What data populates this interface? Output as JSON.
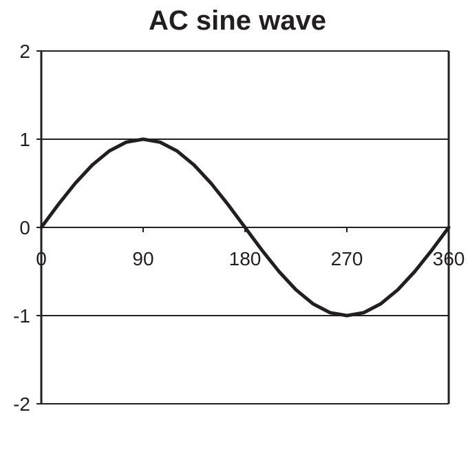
{
  "chart_data": {
    "type": "line",
    "title": "AC sine wave",
    "xlabel": "",
    "ylabel": "",
    "xlim": [
      0,
      360
    ],
    "ylim": [
      -2,
      2
    ],
    "x_ticks": [
      "0",
      "90",
      "180",
      "270",
      "360"
    ],
    "y_ticks": [
      "2",
      "1",
      "0",
      "-1",
      "-2"
    ],
    "grid": "horizontal",
    "legend": "none",
    "series": [
      {
        "x": [
          0,
          15,
          30,
          45,
          60,
          75,
          90,
          105,
          120,
          135,
          150,
          165,
          180,
          195,
          210,
          225,
          240,
          255,
          270,
          285,
          300,
          315,
          330,
          345,
          360
        ],
        "y": [
          0,
          0.259,
          0.5,
          0.707,
          0.866,
          0.966,
          1,
          0.966,
          0.866,
          0.707,
          0.5,
          0.259,
          0,
          -0.259,
          -0.5,
          -0.707,
          -0.866,
          -0.966,
          -1,
          -0.966,
          -0.866,
          -0.707,
          -0.5,
          -0.259,
          0
        ],
        "color": "#231f20"
      }
    ],
    "colors": {
      "ink": "#231f20",
      "background": "#ffffff"
    }
  }
}
